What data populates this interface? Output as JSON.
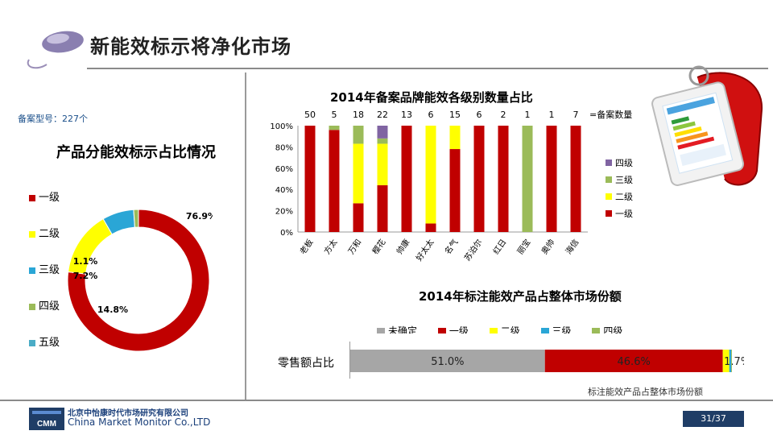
{
  "page": {
    "title": "新能效标示将净化市场",
    "model_count": "备案型号：227个",
    "page_number": "31/37",
    "company_cn": "北京中怡康时代市场研究有限公司",
    "company_en": "China Market Monitor Co.,LTD",
    "logo_text": "CMM",
    "share_note": "标注能效产品占整体市场份额"
  },
  "colors": {
    "level1": "#c00000",
    "level2": "#ffff00",
    "level3": "#2aa6d6",
    "level4": "#8064a2",
    "level3_bar": "#9bbb59",
    "undetermined": "#a6a6a6",
    "accent": "#1f3d66"
  },
  "chart_data": [
    {
      "type": "pie",
      "variant": "donut",
      "title": "产品分能效标示占比情况",
      "legend_position": "left",
      "legend": [
        "一级",
        "二级",
        "三级",
        "四级",
        "五级"
      ],
      "slices": [
        {
          "name": "一级",
          "value": 76.9,
          "label": "76.9%",
          "color": "#c00000"
        },
        {
          "name": "二级",
          "value": 14.8,
          "label": "14.8%",
          "color": "#ffff00"
        },
        {
          "name": "三级",
          "value": 7.2,
          "label": "7.2%",
          "color": "#2aa6d6"
        },
        {
          "name": "四级",
          "value": 1.1,
          "label": "1.1%",
          "color": "#9bbb59"
        }
      ]
    },
    {
      "type": "bar",
      "stacked": true,
      "title": "2014年备案品牌能效各级别数量占比",
      "count_label": "=备案数量",
      "categories": [
        "老板",
        "方太",
        "万和",
        "樱花",
        "帅康",
        "好太太",
        "名气",
        "苏泊尔",
        "红日",
        "丽宝",
        "奥帅",
        "海信"
      ],
      "counts": [
        50,
        5,
        18,
        22,
        13,
        6,
        15,
        6,
        2,
        1,
        1,
        7
      ],
      "yticks": [
        "0%",
        "20%",
        "40%",
        "60%",
        "80%",
        "100%"
      ],
      "ylim": [
        0,
        100
      ],
      "legend_position": "right",
      "series": [
        {
          "name": "一级",
          "color": "#c00000",
          "values": [
            100,
            96,
            27,
            44,
            100,
            8,
            78,
            100,
            100,
            0,
            100,
            100
          ]
        },
        {
          "name": "二级",
          "color": "#ffff00",
          "values": [
            0,
            0,
            56,
            39,
            0,
            92,
            22,
            0,
            0,
            0,
            0,
            0
          ]
        },
        {
          "name": "三级",
          "color": "#9bbb59",
          "values": [
            0,
            4,
            17,
            5,
            0,
            0,
            0,
            0,
            0,
            100,
            0,
            0
          ]
        },
        {
          "name": "四级",
          "color": "#8064a2",
          "values": [
            0,
            0,
            0,
            12,
            0,
            0,
            0,
            0,
            0,
            0,
            0,
            0
          ]
        }
      ]
    },
    {
      "type": "bar",
      "orientation": "horizontal",
      "stacked": true,
      "title": "2014年标注能效产品占整体市场份额",
      "categories": [
        "零售额占比"
      ],
      "legend": [
        "未确定",
        "一级",
        "二级",
        "三级",
        "四级"
      ],
      "legend_position": "top",
      "series": [
        {
          "name": "未确定",
          "color": "#a6a6a6",
          "values": [
            51.0
          ],
          "label": "51.0%"
        },
        {
          "name": "一级",
          "color": "#c00000",
          "values": [
            46.6
          ],
          "label": "46.6%"
        },
        {
          "name": "二级",
          "color": "#ffff00",
          "values": [
            1.7
          ],
          "label": "1.7%"
        },
        {
          "name": "三级",
          "color": "#2aa6d6",
          "values": [
            0.5
          ],
          "label": ""
        },
        {
          "name": "四级",
          "color": "#9bbb59",
          "values": [
            0.2
          ],
          "label": ""
        }
      ]
    }
  ]
}
